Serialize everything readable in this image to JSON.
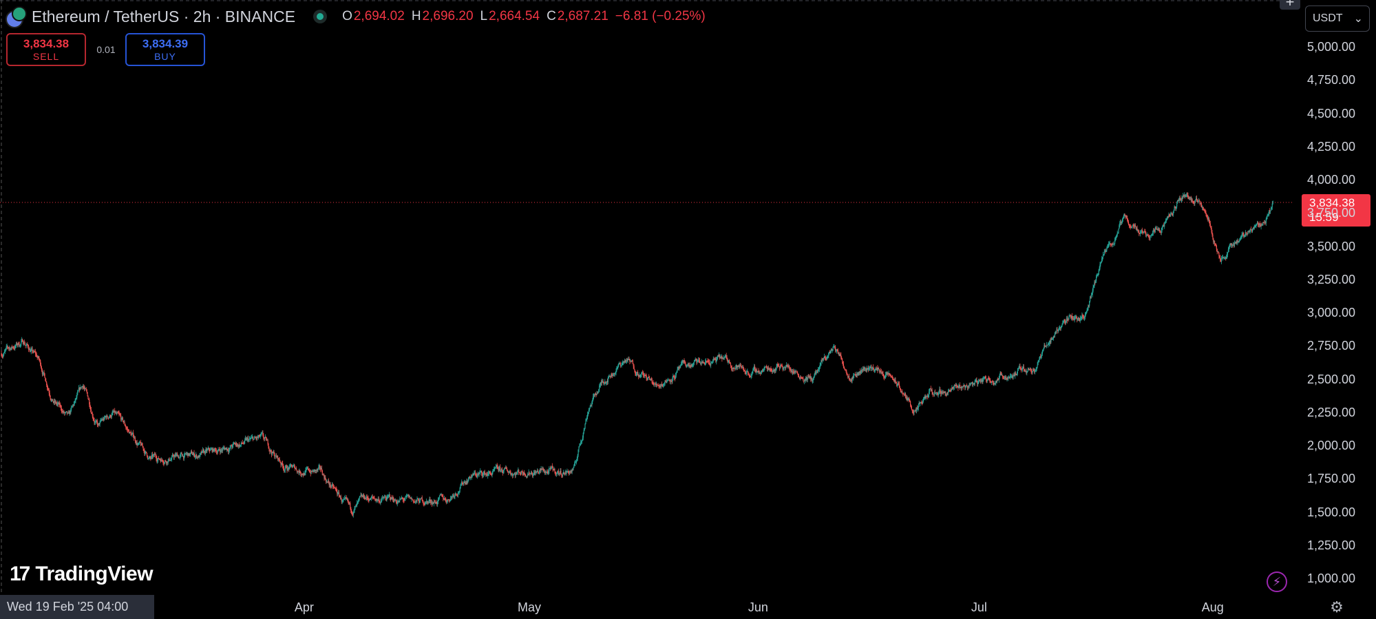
{
  "header": {
    "symbol": "Ethereum / TetherUS · 2h · BINANCE",
    "ohlc": [
      {
        "key": "O",
        "value": "2,694.02"
      },
      {
        "key": "H",
        "value": "2,696.20"
      },
      {
        "key": "L",
        "value": "2,664.54"
      },
      {
        "key": "C",
        "value": "2,687.21"
      }
    ],
    "change": "−6.81 (−0.25%)"
  },
  "trade": {
    "sell_price": "3,834.38",
    "sell_label": "SELL",
    "spread": "0.01",
    "buy_price": "3,834.39",
    "buy_label": "BUY"
  },
  "price_scale": {
    "currency": "USDT",
    "last_price": "3,834.38",
    "countdown": "15:59"
  },
  "footer": {
    "crosshair_time": "Wed 19 Feb '25   04:00",
    "logo": "TradingView"
  },
  "colors": {
    "up": "#26a69a",
    "down": "#ef5350",
    "background": "#000000",
    "last_price": "#f23645"
  },
  "chart_data": {
    "type": "candlestick",
    "symbol": "ETHUSDT",
    "interval": "2h",
    "y_ticks": [
      "5,000.00",
      "4,750.00",
      "4,500.00",
      "4,250.00",
      "4,000.00",
      "3,750.00",
      "3,500.00",
      "3,250.00",
      "3,000.00",
      "2,750.00",
      "2,500.00",
      "2,250.00",
      "2,000.00",
      "1,750.00",
      "1,500.00",
      "1,250.00",
      "1,000.00"
    ],
    "ylim": [
      1000,
      5000
    ],
    "x_ticks": [
      {
        "label": "Apr",
        "date": "2025-04-01"
      },
      {
        "label": "May",
        "date": "2025-05-01"
      },
      {
        "label": "Jun",
        "date": "2025-06-01"
      },
      {
        "label": "Jul",
        "date": "2025-07-01"
      },
      {
        "label": "Aug",
        "date": "2025-08-01"
      }
    ],
    "xlim": [
      "2025-02-19",
      "2025-08-10"
    ],
    "last_price": 3834.38,
    "price_path": [
      {
        "date": "2025-02-19",
        "close": 2700
      },
      {
        "date": "2025-02-22",
        "close": 2790
      },
      {
        "date": "2025-02-24",
        "close": 2650
      },
      {
        "date": "2025-02-26",
        "close": 2350
      },
      {
        "date": "2025-02-28",
        "close": 2200
      },
      {
        "date": "2025-03-02",
        "close": 2450
      },
      {
        "date": "2025-03-04",
        "close": 2150
      },
      {
        "date": "2025-03-06",
        "close": 2250
      },
      {
        "date": "2025-03-09",
        "close": 2050
      },
      {
        "date": "2025-03-11",
        "close": 1900
      },
      {
        "date": "2025-03-14",
        "close": 1920
      },
      {
        "date": "2025-03-18",
        "close": 1930
      },
      {
        "date": "2025-03-22",
        "close": 2000
      },
      {
        "date": "2025-03-26",
        "close": 2050
      },
      {
        "date": "2025-03-29",
        "close": 1850
      },
      {
        "date": "2025-03-31",
        "close": 1820
      },
      {
        "date": "2025-04-03",
        "close": 1800
      },
      {
        "date": "2025-04-07",
        "close": 1500
      },
      {
        "date": "2025-04-09",
        "close": 1600
      },
      {
        "date": "2025-04-12",
        "close": 1600
      },
      {
        "date": "2025-04-16",
        "close": 1580
      },
      {
        "date": "2025-04-20",
        "close": 1600
      },
      {
        "date": "2025-04-23",
        "close": 1780
      },
      {
        "date": "2025-04-27",
        "close": 1800
      },
      {
        "date": "2025-05-01",
        "close": 1820
      },
      {
        "date": "2025-05-05",
        "close": 1800
      },
      {
        "date": "2025-05-07",
        "close": 1820
      },
      {
        "date": "2025-05-09",
        "close": 2300
      },
      {
        "date": "2025-05-11",
        "close": 2500
      },
      {
        "date": "2025-05-14",
        "close": 2650
      },
      {
        "date": "2025-05-18",
        "close": 2450
      },
      {
        "date": "2025-05-22",
        "close": 2600
      },
      {
        "date": "2025-05-27",
        "close": 2650
      },
      {
        "date": "2025-05-31",
        "close": 2550
      },
      {
        "date": "2025-06-04",
        "close": 2620
      },
      {
        "date": "2025-06-08",
        "close": 2500
      },
      {
        "date": "2025-06-11",
        "close": 2750
      },
      {
        "date": "2025-06-13",
        "close": 2550
      },
      {
        "date": "2025-06-16",
        "close": 2600
      },
      {
        "date": "2025-06-19",
        "close": 2500
      },
      {
        "date": "2025-06-22",
        "close": 2250
      },
      {
        "date": "2025-06-24",
        "close": 2400
      },
      {
        "date": "2025-06-27",
        "close": 2420
      },
      {
        "date": "2025-07-01",
        "close": 2500
      },
      {
        "date": "2025-07-05",
        "close": 2550
      },
      {
        "date": "2025-07-08",
        "close": 2600
      },
      {
        "date": "2025-07-10",
        "close": 2800
      },
      {
        "date": "2025-07-12",
        "close": 2950
      },
      {
        "date": "2025-07-15",
        "close": 3000
      },
      {
        "date": "2025-07-17",
        "close": 3400
      },
      {
        "date": "2025-07-20",
        "close": 3700
      },
      {
        "date": "2025-07-23",
        "close": 3600
      },
      {
        "date": "2025-07-26",
        "close": 3700
      },
      {
        "date": "2025-07-28",
        "close": 3900
      },
      {
        "date": "2025-07-31",
        "close": 3800
      },
      {
        "date": "2025-08-02",
        "close": 3400
      },
      {
        "date": "2025-08-05",
        "close": 3600
      },
      {
        "date": "2025-08-08",
        "close": 3700
      },
      {
        "date": "2025-08-09",
        "close": 3834
      }
    ]
  }
}
